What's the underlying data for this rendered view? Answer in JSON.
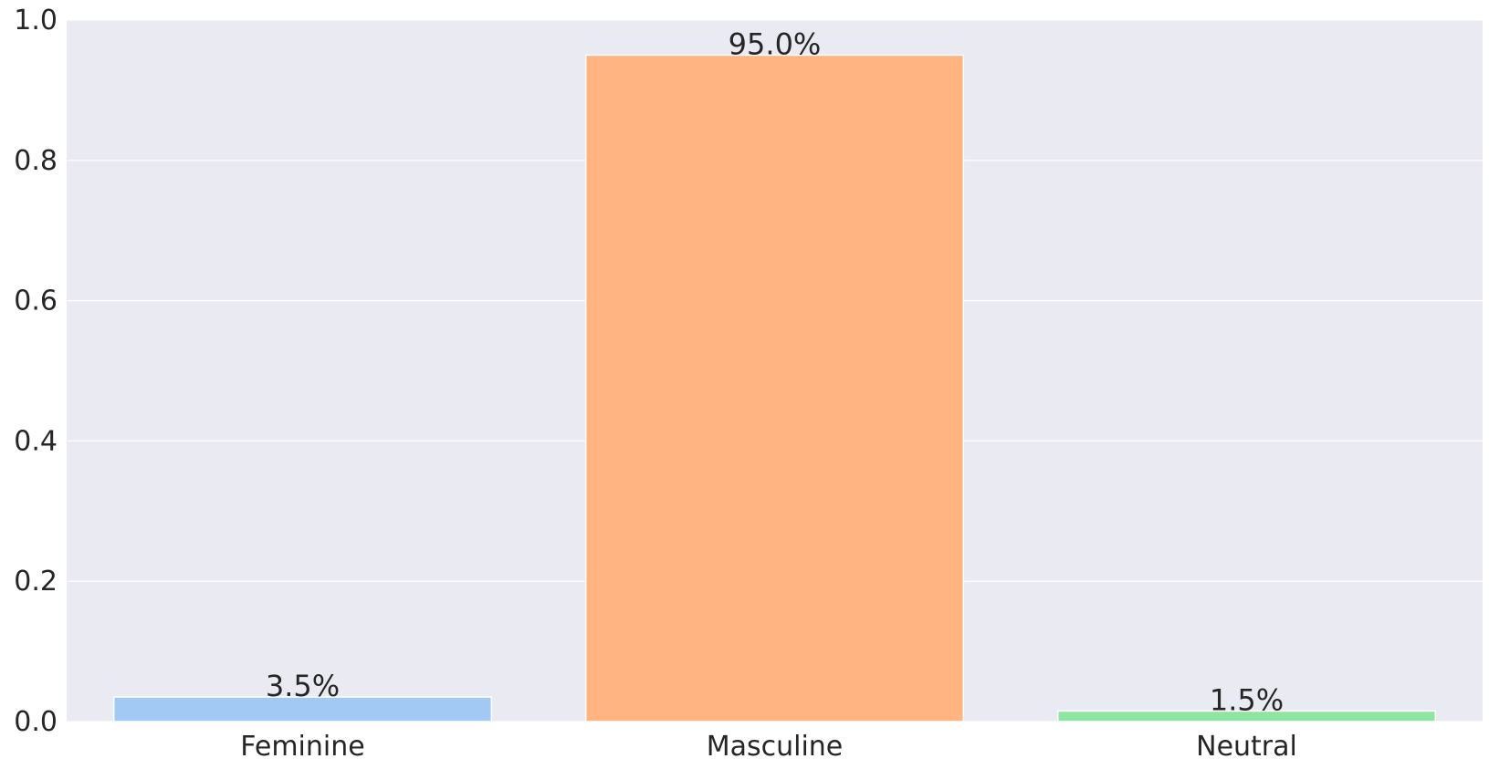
{
  "chart_data": {
    "type": "bar",
    "categories": [
      "Feminine",
      "Masculine",
      "Neutral"
    ],
    "values": [
      0.035,
      0.95,
      0.015
    ],
    "data_labels": [
      "3.5%",
      "95.0%",
      "1.5%"
    ],
    "colors": [
      "#a1c9f4",
      "#ffb482",
      "#8de5a1"
    ],
    "ylim": [
      0,
      1.0
    ],
    "yticks": [
      0.0,
      0.2,
      0.4,
      0.6,
      0.8,
      1.0
    ],
    "ytick_labels": [
      "0.0",
      "0.2",
      "0.4",
      "0.6",
      "0.8",
      "1.0"
    ],
    "grid": true,
    "background_color": "#eaeaf2",
    "grid_color": "#ffffff"
  }
}
